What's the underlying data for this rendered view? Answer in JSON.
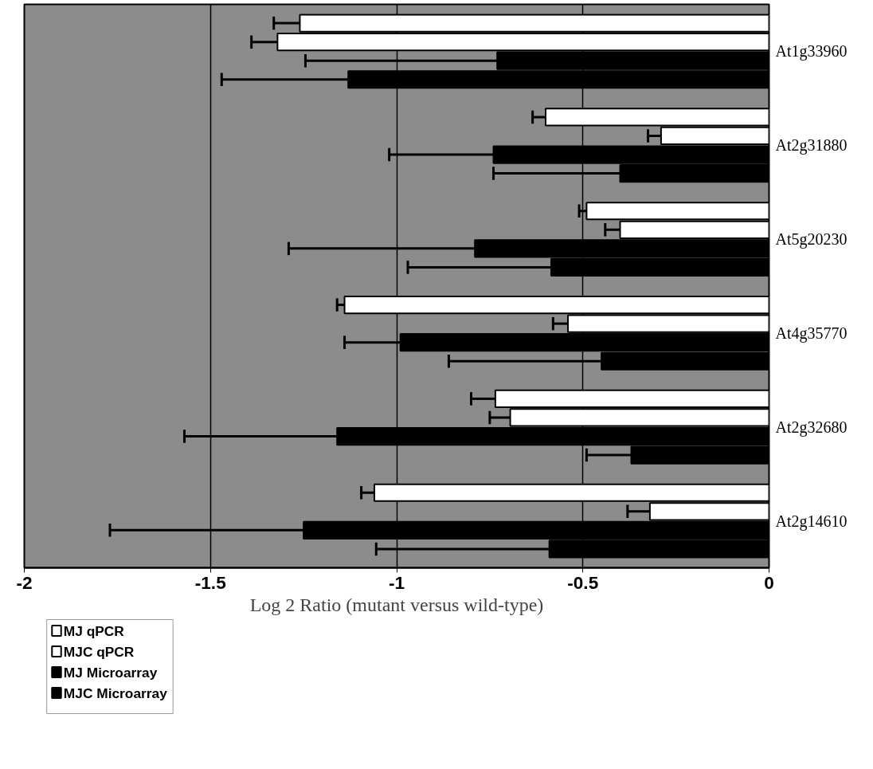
{
  "chart_data": {
    "type": "bar",
    "orientation": "horizontal",
    "xlabel": "Log 2 Ratio (mutant versus wild-type)",
    "categories": [
      "At1g33960",
      "At2g31880",
      "At5g20230",
      "At4g35770",
      "At2g32680",
      "At2g14610"
    ],
    "series": [
      {
        "name": "MJ qPCR",
        "color": "#ffffff",
        "values": [
          -1.26,
          -0.6,
          -0.49,
          -1.14,
          -0.735,
          -1.06
        ],
        "errors": [
          [
            -1.33,
            -1.26
          ],
          [
            -0.635,
            -0.6
          ],
          [
            -0.51,
            -0.49
          ],
          [
            -1.16,
            -1.14
          ],
          [
            -0.8,
            -0.735
          ],
          [
            -1.095,
            -1.06
          ]
        ]
      },
      {
        "name": "MJC qPCR",
        "color": "#ffffff",
        "values": [
          -1.32,
          -0.29,
          -0.4,
          -0.54,
          -0.695,
          -0.32
        ],
        "errors": [
          [
            -1.39,
            -1.32
          ],
          [
            -0.325,
            -0.29
          ],
          [
            -0.44,
            -0.4
          ],
          [
            -0.58,
            -0.54
          ],
          [
            -0.75,
            -0.695
          ],
          [
            -0.38,
            -0.32
          ]
        ]
      },
      {
        "name": "MJ Microarray",
        "color": "#000000",
        "values": [
          -0.73,
          -0.74,
          -0.79,
          -0.99,
          -1.16,
          -1.25
        ],
        "errors": [
          [
            -1.245,
            -0.73
          ],
          [
            -1.02,
            -0.74
          ],
          [
            -1.29,
            -0.79
          ],
          [
            -1.14,
            -0.99
          ],
          [
            -1.57,
            -1.16
          ],
          [
            -1.77,
            -1.25
          ]
        ]
      },
      {
        "name": "MJC Microarray",
        "color": "#000000",
        "values": [
          -1.13,
          -0.4,
          -0.585,
          -0.45,
          -0.37,
          -0.59
        ],
        "errors": [
          [
            -1.47,
            -1.13
          ],
          [
            -0.74,
            -0.4
          ],
          [
            -0.97,
            -0.585
          ],
          [
            -0.86,
            -0.45
          ],
          [
            -0.49,
            -0.37
          ],
          [
            -1.055,
            -0.59
          ]
        ]
      }
    ],
    "xlim": [
      -2,
      0
    ],
    "xticks": [
      -2,
      -1.5,
      -1,
      -0.5,
      0
    ],
    "grid": "x",
    "legend": "bottom left"
  }
}
